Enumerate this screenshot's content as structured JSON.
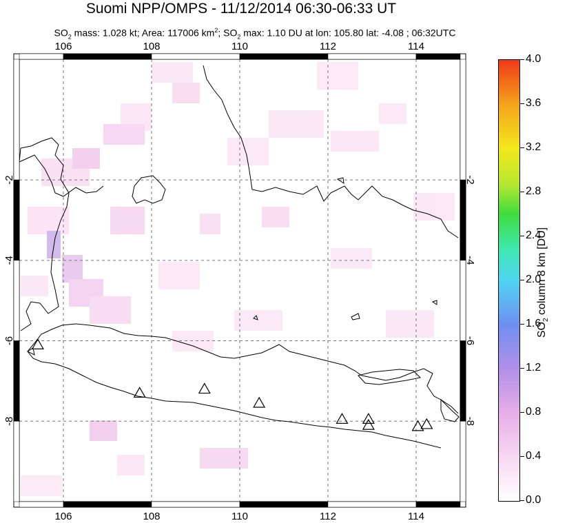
{
  "title": "Suomi NPP/OMPS - 11/12/2014 06:30-06:33 UT",
  "subtitle": {
    "so2_mass_label": "SO",
    "so2_mass_sub": "2",
    "so2_mass_value": " mass: 1.028 kt; Area: 117006 km",
    "area_sup": "2",
    "so2_max_prefix": "; SO",
    "so2_max_sub": "2",
    "so2_max_rest": " max: 1.10 DU at lon: 105.80 lat: -4.08 ; 06:32UTC"
  },
  "map": {
    "lon_labels": [
      "106",
      "108",
      "110",
      "112",
      "114"
    ],
    "lat_labels": [
      "-2",
      "-4",
      "-6",
      "-8"
    ],
    "lon_values": [
      106,
      108,
      110,
      112,
      114
    ],
    "lat_values": [
      -2,
      -4,
      -6,
      -8
    ],
    "lon_range": [
      105,
      115
    ],
    "lat_range": [
      1.0,
      -10.0
    ],
    "grid": "dashed",
    "volcano_marker": "triangle-icon",
    "volcanoes": [
      {
        "lon": 105.42,
        "lat": -6.1
      },
      {
        "lon": 107.73,
        "lat": -7.3
      },
      {
        "lon": 109.2,
        "lat": -7.2
      },
      {
        "lon": 110.44,
        "lat": -7.55
      },
      {
        "lon": 112.32,
        "lat": -7.95
      },
      {
        "lon": 112.92,
        "lat": -7.95
      },
      {
        "lon": 112.92,
        "lat": -8.1
      },
      {
        "lon": 114.04,
        "lat": -8.13
      },
      {
        "lon": 114.24,
        "lat": -8.08
      }
    ]
  },
  "colorbar": {
    "tick_labels": [
      "4.0",
      "3.6",
      "3.2",
      "2.8",
      "2.4",
      "2.0",
      "1.6",
      "1.2",
      "0.8",
      "0.4",
      "0.0"
    ],
    "title_prefix": "SO",
    "title_sub": "2",
    "title_rest": " column 8 km [DU]",
    "colors": [
      "#ffffff",
      "#f7d7f3",
      "#e6aee8",
      "#b28fe8",
      "#6f8ff2",
      "#4fd4f2",
      "#3fdc3f",
      "#f4e81c",
      "#f4a21c",
      "#ef3a16"
    ]
  }
}
